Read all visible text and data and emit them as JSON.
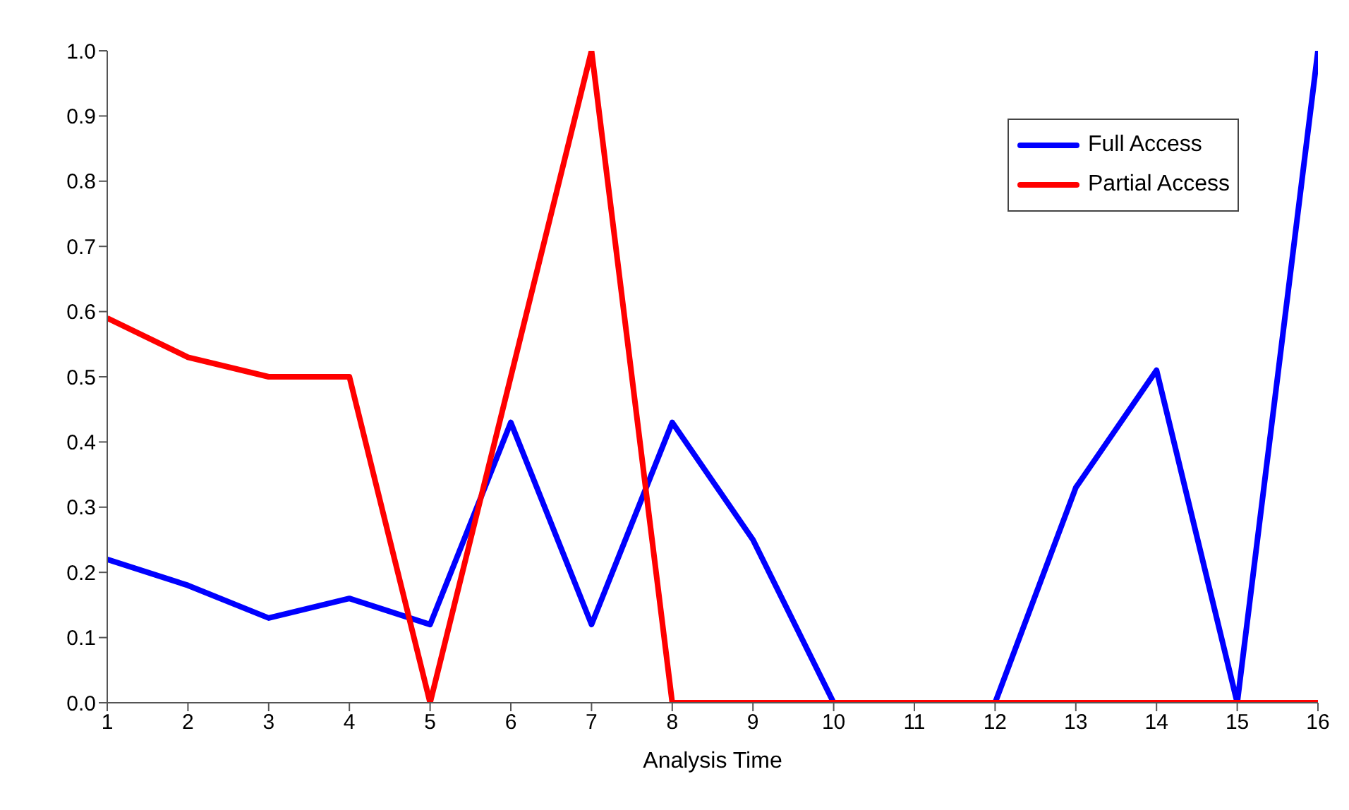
{
  "chart_data": {
    "type": "line",
    "xlabel": "Analysis Time",
    "x": [
      1,
      2,
      3,
      4,
      5,
      6,
      7,
      8,
      9,
      10,
      11,
      12,
      13,
      14,
      15,
      16
    ],
    "series": [
      {
        "name": "Full Access",
        "color": "#0000ff",
        "values": [
          0.22,
          0.18,
          0.13,
          0.16,
          0.12,
          0.43,
          0.12,
          0.43,
          0.25,
          0,
          0,
          0,
          0.33,
          0.51,
          0,
          1
        ]
      },
      {
        "name": "Partial Access",
        "color": "#ff0000",
        "values": [
          0.59,
          0.53,
          0.5,
          0.5,
          0,
          0.5,
          1,
          0,
          0,
          0,
          0,
          0,
          0,
          0,
          0,
          0
        ]
      }
    ],
    "xlim": [
      1,
      16
    ],
    "xticks": [
      1,
      2,
      3,
      4,
      5,
      6,
      7,
      8,
      9,
      10,
      11,
      12,
      13,
      14,
      15,
      16
    ],
    "ylim": [
      0,
      1
    ],
    "yticks": [
      {
        "value": 0,
        "label": "0.0"
      },
      0.1,
      0.2,
      0.3,
      0.4,
      0.5,
      0.6,
      0.7,
      0.8,
      0.9,
      {
        "value": 1,
        "label": "1.0"
      }
    ],
    "grid": false,
    "legend": "top right",
    "marker": "none",
    "line_style": "solid"
  }
}
